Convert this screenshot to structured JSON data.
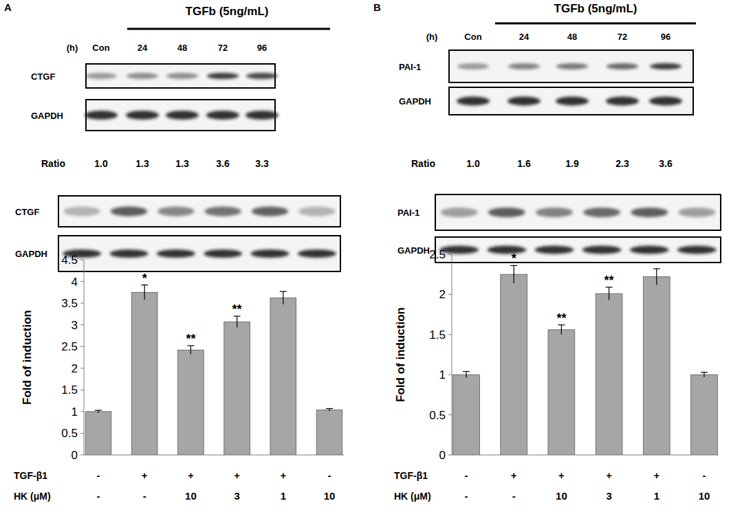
{
  "chart_data": [
    {
      "type": "bar",
      "categories": [
        null,
        null,
        null,
        null,
        null,
        null
      ],
      "values": [
        1.0,
        3.75,
        2.42,
        3.07,
        3.62,
        1.04
      ],
      "errors": [
        0.03,
        0.17,
        0.1,
        0.13,
        0.15,
        0.03
      ],
      "annotations": [
        null,
        "*",
        "**",
        "**",
        null,
        null
      ],
      "ylabel": "Fold of induction",
      "ylim": [
        0,
        4.5
      ],
      "yticks": [
        0,
        0.5,
        1,
        1.5,
        2,
        2.5,
        3,
        3.5,
        4,
        4.5
      ],
      "color": "#a6a6a6",
      "grid": false,
      "conditions": [
        {
          "label": "TGF-β1",
          "values": [
            "-",
            "+",
            "+",
            "+",
            "+",
            "-"
          ]
        },
        {
          "label": "HK (μM)",
          "values": [
            "-",
            "-",
            "10",
            "3",
            "1",
            "10"
          ]
        }
      ]
    },
    {
      "type": "bar",
      "categories": [
        null,
        null,
        null,
        null,
        null,
        null
      ],
      "values": [
        1.0,
        2.25,
        1.56,
        2.01,
        2.22,
        1.0
      ],
      "errors": [
        0.04,
        0.11,
        0.06,
        0.08,
        0.1,
        0.03
      ],
      "annotations": [
        null,
        "*",
        "**",
        "**",
        null,
        null
      ],
      "ylabel": "Fold of induction",
      "ylim": [
        0,
        2.5
      ],
      "yticks": [
        0,
        0.5,
        1,
        1.5,
        2,
        2.5
      ],
      "color": "#a6a6a6",
      "grid": false,
      "conditions": [
        {
          "label": "TGF-β1",
          "values": [
            "-",
            "+",
            "+",
            "+",
            "+",
            "-"
          ]
        },
        {
          "label": "HK (μM)",
          "values": [
            "-",
            "-",
            "10",
            "3",
            "1",
            "10"
          ]
        }
      ]
    }
  ],
  "blots": [
    {
      "panel": "A",
      "treatment": "TGFb (5ng/mL)",
      "time_label": "(h)",
      "lanes": [
        "Con",
        "24",
        "48",
        "72",
        "96"
      ],
      "rows": [
        "CTGF",
        "GAPDH"
      ],
      "ratio_label": "Ratio",
      "ratios": [
        "1.0",
        "1.3",
        "1.3",
        "3.6",
        "3.3"
      ],
      "lower_rows": [
        "CTGF",
        "GAPDH"
      ]
    },
    {
      "panel": "B",
      "treatment": "TGFb (5ng/mL)",
      "time_label": "(h)",
      "lanes": [
        "Con",
        "24",
        "48",
        "72",
        "96"
      ],
      "rows": [
        "PAI-1",
        "GAPDH"
      ],
      "ratio_label": "Ratio",
      "ratios": [
        "1.0",
        "1.6",
        "1.9",
        "2.3",
        "3.6"
      ],
      "lower_rows": [
        "PAI-1",
        "GAPDH"
      ]
    }
  ]
}
